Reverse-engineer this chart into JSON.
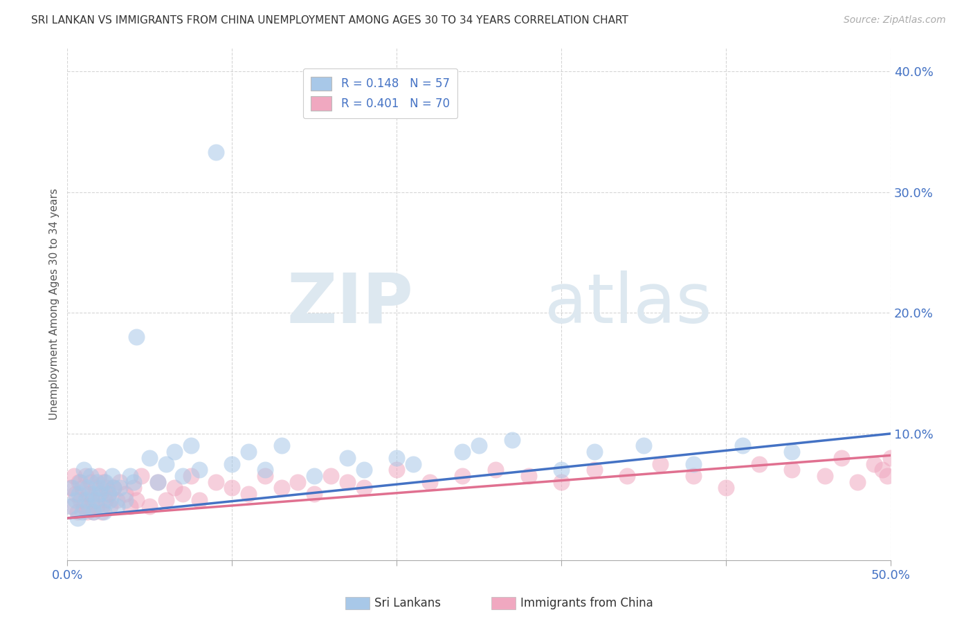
{
  "title": "SRI LANKAN VS IMMIGRANTS FROM CHINA UNEMPLOYMENT AMONG AGES 30 TO 34 YEARS CORRELATION CHART",
  "source": "Source: ZipAtlas.com",
  "ylabel": "Unemployment Among Ages 30 to 34 years",
  "xlim": [
    0.0,
    0.5
  ],
  "ylim": [
    -0.005,
    0.42
  ],
  "xticks": [
    0.0,
    0.1,
    0.2,
    0.3,
    0.4,
    0.5
  ],
  "xticklabels": [
    "0.0%",
    "",
    "",
    "",
    "",
    "50.0%"
  ],
  "yticks": [
    0.1,
    0.2,
    0.3,
    0.4
  ],
  "yticklabels": [
    "10.0%",
    "20.0%",
    "30.0%",
    "40.0%"
  ],
  "sri_lankans_R": "0.148",
  "sri_lankans_N": "57",
  "immigrants_china_R": "0.401",
  "immigrants_china_N": "70",
  "sri_color": "#a8c8e8",
  "china_color": "#f0a8c0",
  "sri_line_color": "#4472c4",
  "china_line_color": "#e07090",
  "background_color": "#ffffff",
  "grid_color": "#cccccc",
  "watermark_zip": "ZIP",
  "watermark_atlas": "atlas",
  "sri_trend_start": 0.03,
  "sri_trend_end": 0.1,
  "china_trend_start": 0.03,
  "china_trend_end": 0.082,
  "sri_lankans_x": [
    0.002,
    0.003,
    0.005,
    0.006,
    0.007,
    0.008,
    0.009,
    0.01,
    0.011,
    0.012,
    0.013,
    0.014,
    0.015,
    0.016,
    0.017,
    0.018,
    0.019,
    0.02,
    0.021,
    0.022,
    0.023,
    0.025,
    0.026,
    0.027,
    0.028,
    0.03,
    0.032,
    0.035,
    0.038,
    0.04,
    0.042,
    0.05,
    0.055,
    0.06,
    0.065,
    0.07,
    0.075,
    0.08,
    0.09,
    0.1,
    0.11,
    0.12,
    0.13,
    0.15,
    0.17,
    0.18,
    0.2,
    0.21,
    0.24,
    0.25,
    0.27,
    0.3,
    0.32,
    0.35,
    0.38,
    0.41,
    0.44
  ],
  "sri_lankans_y": [
    0.04,
    0.055,
    0.045,
    0.03,
    0.05,
    0.06,
    0.035,
    0.07,
    0.045,
    0.055,
    0.04,
    0.065,
    0.05,
    0.035,
    0.045,
    0.06,
    0.05,
    0.055,
    0.04,
    0.035,
    0.06,
    0.05,
    0.045,
    0.065,
    0.055,
    0.04,
    0.055,
    0.045,
    0.065,
    0.06,
    0.18,
    0.08,
    0.06,
    0.075,
    0.085,
    0.065,
    0.09,
    0.07,
    0.333,
    0.075,
    0.085,
    0.07,
    0.09,
    0.065,
    0.08,
    0.07,
    0.08,
    0.075,
    0.085,
    0.09,
    0.095,
    0.07,
    0.085,
    0.09,
    0.075,
    0.09,
    0.085
  ],
  "china_x": [
    0.002,
    0.003,
    0.004,
    0.005,
    0.006,
    0.007,
    0.008,
    0.009,
    0.01,
    0.011,
    0.012,
    0.013,
    0.014,
    0.015,
    0.016,
    0.017,
    0.018,
    0.019,
    0.02,
    0.021,
    0.022,
    0.023,
    0.024,
    0.025,
    0.026,
    0.028,
    0.03,
    0.032,
    0.035,
    0.038,
    0.04,
    0.042,
    0.045,
    0.05,
    0.055,
    0.06,
    0.065,
    0.07,
    0.075,
    0.08,
    0.09,
    0.1,
    0.11,
    0.12,
    0.13,
    0.14,
    0.15,
    0.16,
    0.17,
    0.18,
    0.2,
    0.22,
    0.24,
    0.26,
    0.28,
    0.3,
    0.32,
    0.34,
    0.36,
    0.38,
    0.4,
    0.42,
    0.44,
    0.46,
    0.47,
    0.48,
    0.49,
    0.495,
    0.498,
    0.5
  ],
  "china_y": [
    0.055,
    0.04,
    0.065,
    0.05,
    0.035,
    0.06,
    0.045,
    0.055,
    0.04,
    0.065,
    0.035,
    0.05,
    0.06,
    0.045,
    0.035,
    0.055,
    0.04,
    0.065,
    0.05,
    0.035,
    0.06,
    0.045,
    0.055,
    0.05,
    0.04,
    0.055,
    0.045,
    0.06,
    0.05,
    0.04,
    0.055,
    0.045,
    0.065,
    0.04,
    0.06,
    0.045,
    0.055,
    0.05,
    0.065,
    0.045,
    0.06,
    0.055,
    0.05,
    0.065,
    0.055,
    0.06,
    0.05,
    0.065,
    0.06,
    0.055,
    0.07,
    0.06,
    0.065,
    0.07,
    0.065,
    0.06,
    0.07,
    0.065,
    0.075,
    0.065,
    0.055,
    0.075,
    0.07,
    0.065,
    0.08,
    0.06,
    0.075,
    0.07,
    0.065,
    0.08
  ]
}
